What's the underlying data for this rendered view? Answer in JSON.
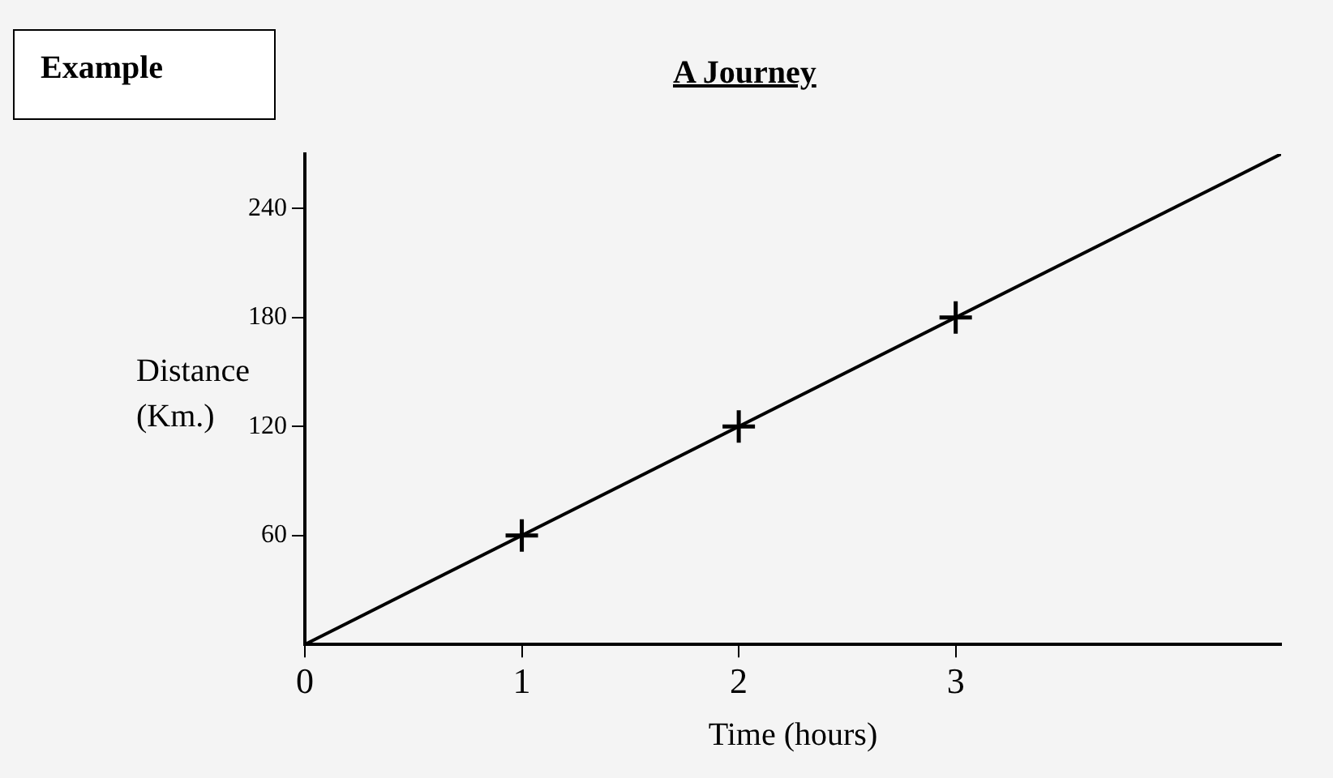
{
  "chart_data": {
    "type": "scatter",
    "title": "A Journey",
    "xlabel": "Time (hours)",
    "ylabel": "Distance (Km.)",
    "annotations": [
      "Example"
    ],
    "xlim": [
      0,
      4.5
    ],
    "ylim": [
      0,
      270
    ],
    "xticks": [
      0,
      1,
      2,
      3
    ],
    "yticks": [
      60,
      120,
      180,
      240
    ],
    "grid": false,
    "legend": false,
    "series": [
      {
        "type": "line",
        "color": "#000000",
        "x": [
          0,
          4.5
        ],
        "values": [
          0,
          270
        ],
        "marker": "none",
        "line_style": "solid"
      },
      {
        "type": "scatter",
        "color": "#000000",
        "x": [
          1,
          2,
          3
        ],
        "values": [
          60,
          120,
          180
        ],
        "marker": "cross"
      }
    ]
  }
}
